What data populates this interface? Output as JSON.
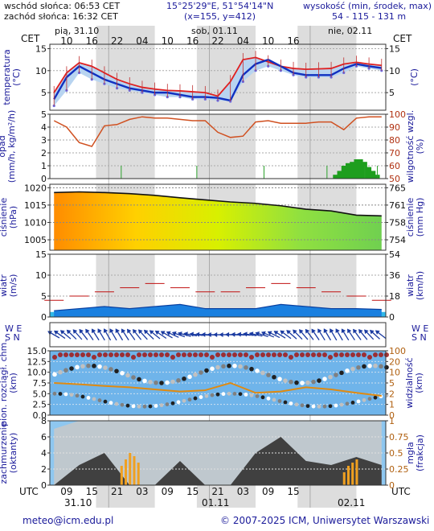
{
  "header": {
    "sunrise": "wschód słońca: 06:53 CET",
    "sunset": "zachód słońca: 16:32 CET",
    "coords": "15°25'29\"E, 51°54'14\"N",
    "grid": "(x=155, y=412)",
    "altitude_label": "wysokość (min, środek, max)",
    "altitude_values": "54 - 115 - 131 m"
  },
  "top_axis": {
    "tz": "CET",
    "days": [
      "pią, 31.10",
      "sob, 01.11",
      "nie, 02.11"
    ],
    "hours": [
      "10",
      "16",
      "22",
      "04",
      "10",
      "16",
      "22",
      "04",
      "10",
      "16"
    ]
  },
  "bottom_axis": {
    "tz": "UTC",
    "hours": [
      "09",
      "15",
      "21",
      "03",
      "09",
      "15",
      "21",
      "03",
      "09",
      "15"
    ],
    "dates": [
      "31.10",
      "01.11",
      "02.11"
    ]
  },
  "panels": {
    "temperature": {
      "left": "temperatura\n(°C)",
      "right": "(°C)",
      "ticks": [
        "15",
        "10",
        "5"
      ]
    },
    "precip": {
      "left": "opad\n(mm/h, kg/m²/h)",
      "right": "wilgotność wzgl.\n(%)",
      "ticks_left": [
        "5",
        "4",
        "3",
        "2",
        "1",
        "0"
      ],
      "ticks_right": [
        "100",
        "90",
        "80",
        "70",
        "60",
        "50"
      ]
    },
    "pressure": {
      "left": "ciśnienie\n(hPa)",
      "right": "ciśnienie\n(mm Hg)",
      "ticks_left": [
        "1020",
        "1015",
        "1010",
        "1005"
      ],
      "ticks_right": [
        "765",
        "761",
        "758",
        "754"
      ]
    },
    "wind": {
      "left": "wiatr\n(m/s)",
      "right": "wiatr\n(km/h)",
      "ticks_left": [
        "15",
        "10",
        "5",
        "0"
      ],
      "ticks_right": [
        "54",
        "36",
        "18",
        "0"
      ]
    },
    "winddir": {
      "left": "W E\nS N",
      "right": "W E\nS N"
    },
    "clouds": {
      "left": "pion. rozciągł. chm.\n(km)",
      "right": "widzialność\n(km)",
      "ticks_left": [
        "15.0",
        "12.5",
        "10.0",
        "7.5",
        "5.0",
        "2.5",
        "0.0"
      ],
      "ticks_right": [
        "100",
        "20",
        "10",
        "5",
        "2",
        "1",
        "0"
      ]
    },
    "cover": {
      "left": "zachmurzenie\n(oktanty)",
      "right": "mgła\n(frakcja)",
      "ticks_left": [
        "8",
        "6",
        "4",
        "2",
        "0"
      ],
      "ticks_right": [
        "1",
        "0.75",
        "0.5",
        "0.25",
        "0"
      ]
    }
  },
  "footer": {
    "email": "meteo@icm.edu.pl",
    "copyright": "© 2007-2025 ICM, Uniwersytet Warszawski"
  },
  "chart_data": [
    {
      "type": "line",
      "title": "temperatura",
      "ylabel": "(°C)",
      "ylim": [
        1,
        16
      ],
      "x_hours": [
        6,
        9,
        12,
        15,
        18,
        21,
        24,
        27,
        30,
        33,
        36,
        39,
        42,
        45,
        48,
        51,
        54,
        57,
        60,
        63,
        66,
        69,
        72,
        75,
        78,
        81,
        84
      ],
      "series": [
        {
          "values": [
            3.5,
            8.5,
            11,
            9.5,
            8,
            7,
            6,
            5.5,
            5,
            5,
            4.5,
            4,
            4,
            3.8,
            3.2,
            9,
            11.5,
            12.5,
            11,
            9.5,
            9,
            9,
            9,
            10.5,
            11.5,
            11,
            10.6
          ]
        },
        {
          "values": [
            5,
            9.5,
            11.8,
            11,
            9.5,
            8,
            7,
            6.2,
            5.8,
            5.5,
            5.4,
            5.2,
            5,
            4.2,
            7.5,
            12.5,
            13,
            12,
            11,
            10.5,
            10.3,
            10.4,
            10.5,
            11.5,
            11.9,
            11.5,
            11.2
          ]
        },
        {
          "values": [
            2,
            5.5,
            9.5,
            8,
            7,
            6,
            5.5,
            5,
            4.5,
            4,
            4,
            3.5,
            3.5,
            3.2,
            3,
            7.5,
            10,
            11,
            10,
            9,
            8.5,
            8.5,
            8.5,
            9.5,
            11,
            10.5,
            10
          ]
        }
      ]
    },
    {
      "type": "line",
      "title": "wilgotność wzgl.",
      "ylabel": "(%)",
      "ylim": [
        50,
        100
      ],
      "x_hours": [
        6,
        9,
        12,
        15,
        18,
        21,
        24,
        27,
        30,
        33,
        36,
        39,
        42,
        45,
        48,
        51,
        54,
        57,
        60,
        63,
        66,
        69,
        72,
        75,
        78,
        81,
        84
      ],
      "series": [
        {
          "values": [
            95,
            90,
            78,
            75,
            91,
            92,
            96,
            98,
            97,
            97,
            96,
            95,
            95,
            86,
            82,
            83,
            94,
            95,
            93,
            93,
            93,
            94,
            94,
            88,
            97,
            98,
            98
          ]
        }
      ]
    },
    {
      "type": "bar",
      "title": "opad",
      "ylabel": "(mm/h, kg/m²/h)",
      "ylim": [
        0,
        5
      ],
      "x_hours": [
        73,
        74,
        75,
        76,
        77,
        78,
        79,
        80,
        81,
        82,
        83
      ],
      "values": [
        0.3,
        0.6,
        1,
        1.2,
        1.3,
        1.5,
        1.5,
        1.3,
        0.9,
        0.6,
        0.3
      ]
    },
    {
      "type": "line",
      "title": "ciśnienie",
      "ylabel": "(hPa)",
      "ylim": [
        1002,
        1021
      ],
      "x_hours": [
        6,
        12,
        18,
        24,
        30,
        36,
        42,
        48,
        54,
        60,
        66,
        72,
        78,
        84
      ],
      "series": [
        {
          "values": [
            1018.6,
            1018.8,
            1018.6,
            1018.3,
            1017.8,
            1017.1,
            1016.5,
            1015.9,
            1015.5,
            1014.8,
            1013.8,
            1013.3,
            1012.1,
            1011.9
          ]
        }
      ]
    },
    {
      "type": "area",
      "title": "wiatr",
      "ylabel": "(m/s)",
      "ylim": [
        0,
        15
      ],
      "x_hours": [
        6,
        12,
        18,
        24,
        30,
        36,
        42,
        48,
        54,
        60,
        66,
        72,
        78,
        84
      ],
      "series": [
        {
          "values": [
            1.5,
            2,
            2.5,
            2,
            2.5,
            3,
            2,
            2,
            2,
            3,
            2.5,
            2,
            2,
            1.8
          ]
        },
        {
          "values": [
            4,
            5,
            6,
            7,
            8,
            7,
            6,
            6,
            7,
            8,
            7,
            6,
            5,
            4
          ]
        }
      ]
    },
    {
      "type": "scatter",
      "title": "widzialność",
      "ylabel": "(km)",
      "ylim": [
        0,
        15
      ],
      "x_hours": [
        6,
        12,
        18,
        24,
        30,
        36,
        42,
        48,
        54,
        60,
        66,
        72,
        78,
        84
      ],
      "series": [
        {
          "values": [
            7.5,
            7.2,
            6.8,
            6.5,
            6,
            5.5,
            5.8,
            7.5,
            5.2,
            5.5,
            6.5,
            6,
            5.2,
            4.5
          ]
        }
      ]
    },
    {
      "type": "area",
      "title": "zachmurzenie",
      "ylabel": "(oktanty)",
      "ylim": [
        0,
        8
      ],
      "x_hours": [
        6,
        12,
        18,
        24,
        30,
        36,
        42,
        48,
        54,
        60,
        66,
        72,
        78,
        84
      ],
      "series": [
        {
          "values": [
            7,
            8,
            8,
            8,
            8,
            8,
            8,
            8,
            8,
            8,
            8,
            8,
            8,
            8
          ]
        },
        {
          "values": [
            0,
            2.5,
            4,
            0,
            0,
            3,
            0,
            0,
            4,
            6,
            3,
            2.5,
            3.5,
            2.5
          ]
        }
      ]
    }
  ]
}
